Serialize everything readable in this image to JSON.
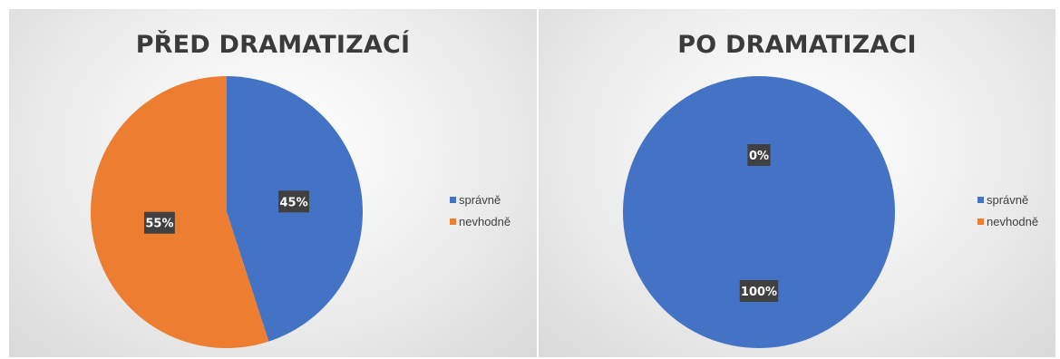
{
  "chart_data": [
    {
      "type": "pie",
      "title": "PŘED DRAMATIZACÍ",
      "categories": [
        "správně",
        "nevhodně"
      ],
      "values": [
        45,
        55
      ],
      "data_labels": [
        "45%",
        "55%"
      ],
      "colors": [
        "#4472C4",
        "#ED7D31"
      ],
      "legend": "right"
    },
    {
      "type": "pie",
      "title": "PO DRAMATIZACI",
      "categories": [
        "správně",
        "nevhodně"
      ],
      "values": [
        100,
        0
      ],
      "data_labels": [
        "100%",
        "0%"
      ],
      "colors": [
        "#4472C4",
        "#ED7D31"
      ],
      "legend": "right"
    }
  ]
}
